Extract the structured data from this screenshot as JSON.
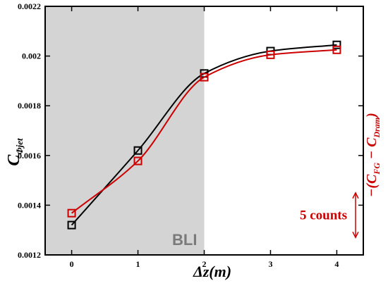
{
  "chart_data": {
    "type": "line",
    "x": [
      0,
      1,
      2,
      3,
      4
    ],
    "xlim": [
      -0.4,
      4.4
    ],
    "ylim": [
      0.0012,
      0.0022
    ],
    "xticks": [
      {
        "value": 0,
        "label": "0"
      },
      {
        "value": 1,
        "label": "1"
      },
      {
        "value": 2,
        "label": "2"
      },
      {
        "value": 3,
        "label": "3"
      },
      {
        "value": 4,
        "label": "4"
      }
    ],
    "yticks": [
      {
        "value": 0.0012,
        "label": "0.0012"
      },
      {
        "value": 0.0014,
        "label": "0.0014"
      },
      {
        "value": 0.0016,
        "label": "0.0016"
      },
      {
        "value": 0.0018,
        "label": "0.0018"
      },
      {
        "value": 0.002,
        "label": "0.002"
      },
      {
        "value": 0.0022,
        "label": "0.0022"
      }
    ],
    "xlabel": {
      "main": "Δz(m)"
    },
    "ylabel": {
      "main": "C",
      "sub": "Φjet"
    },
    "ylabel_right": {
      "prefix": "−(C",
      "sub1": "FG",
      "mid": " − C",
      "sub2": "Dram",
      "suffix": ")"
    },
    "series": [
      {
        "color": "#000000",
        "marker": "square",
        "values": [
          0.00132,
          0.00162,
          0.00193,
          0.00202,
          0.002045
        ]
      },
      {
        "color": "#cc0000",
        "marker": "square",
        "values": [
          0.001368,
          0.001578,
          0.001915,
          0.002005,
          0.002025
        ]
      }
    ],
    "shaded_region": {
      "x_from": -0.4,
      "x_to": 2,
      "color": "#d4d4d4",
      "label": "BLI"
    },
    "scale_bar": {
      "label": "5 counts",
      "color": "#cc0000",
      "y_from": 0.00127,
      "y_to": 0.00145
    },
    "grid": false
  }
}
